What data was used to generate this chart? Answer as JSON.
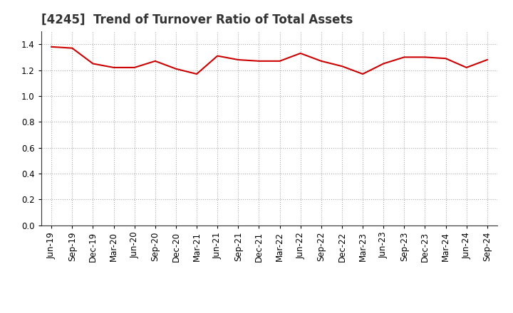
{
  "title": "[4245]  Trend of Turnover Ratio of Total Assets",
  "x_labels": [
    "Jun-19",
    "Sep-19",
    "Dec-19",
    "Mar-20",
    "Jun-20",
    "Sep-20",
    "Dec-20",
    "Mar-21",
    "Jun-21",
    "Sep-21",
    "Dec-21",
    "Mar-22",
    "Jun-22",
    "Sep-22",
    "Dec-22",
    "Mar-23",
    "Jun-23",
    "Sep-23",
    "Dec-23",
    "Mar-24",
    "Jun-24",
    "Sep-24"
  ],
  "values": [
    1.38,
    1.37,
    1.25,
    1.22,
    1.22,
    1.27,
    1.21,
    1.17,
    1.31,
    1.28,
    1.27,
    1.27,
    1.33,
    1.27,
    1.23,
    1.17,
    1.25,
    1.3,
    1.3,
    1.29,
    1.22,
    1.28
  ],
  "line_color": "#cc0000",
  "line_width": 1.5,
  "ylim": [
    0.0,
    1.5
  ],
  "yticks": [
    0.0,
    0.2,
    0.4,
    0.6,
    0.8,
    1.0,
    1.2,
    1.4
  ],
  "grid_color": "#aaaaaa",
  "grid_style": "dotted",
  "bg_color": "#ffffff",
  "title_fontsize": 12,
  "tick_fontsize": 8.5,
  "title_color": "#333333"
}
